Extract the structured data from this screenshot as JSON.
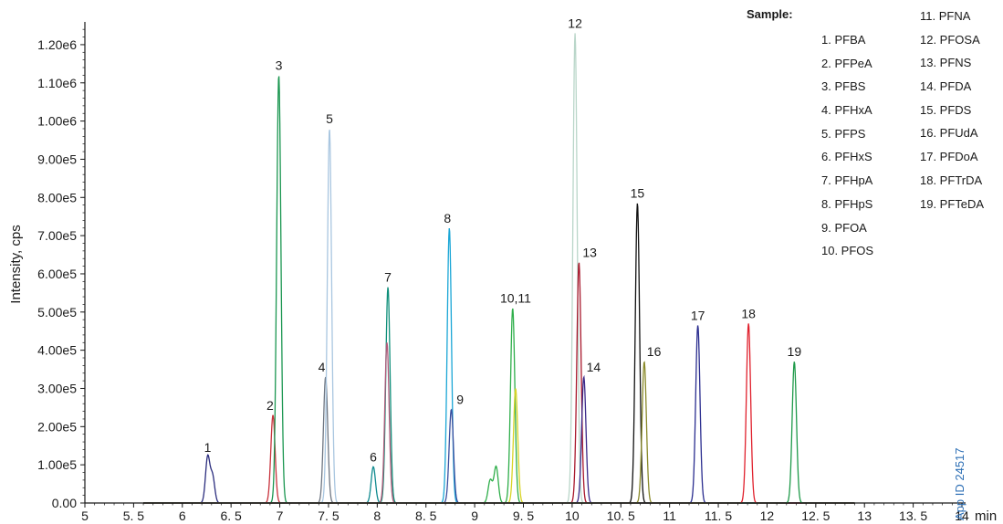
{
  "chart_data": {
    "type": "line",
    "title": "",
    "xlabel": "min",
    "ylabel": "Intensity, cps",
    "xlim": [
      5,
      14
    ],
    "ylim": [
      0,
      1250000
    ],
    "xticks": [
      5,
      5.5,
      6,
      6.5,
      7,
      7.5,
      8,
      8.5,
      9,
      9.5,
      10,
      10.5,
      11,
      11.5,
      12,
      12.5,
      13,
      13.5,
      14
    ],
    "xtick_labels": [
      "5",
      "5. 5",
      "6",
      "6. 5",
      "7",
      "7. 5",
      "8",
      "8. 5",
      "9",
      "9. 5",
      "10",
      "10. 5",
      "11",
      "11. 5",
      "12",
      "12. 5",
      "13",
      "13. 5",
      "14"
    ],
    "yticks": [
      0,
      100000,
      200000,
      300000,
      400000,
      500000,
      600000,
      700000,
      800000,
      900000,
      1000000,
      1100000,
      1200000
    ],
    "ytick_labels": [
      "0.00",
      "1.00e5",
      "2.00e5",
      "3.00e5",
      "4.00e5",
      "5.00e5",
      "6.00e5",
      "7.00e5",
      "8.00e5",
      "9.00e5",
      "1.00e6",
      "1.10e6",
      "1.20e6"
    ],
    "grid": false,
    "series": [
      {
        "color": "#2b2d7e",
        "peaks": [
          {
            "rt": 6.26,
            "height": 120000
          },
          {
            "rt": 6.31,
            "height": 70000
          }
        ]
      },
      {
        "color": "#c8323c",
        "peaks": [
          {
            "rt": 6.93,
            "height": 230000
          }
        ]
      },
      {
        "color": "#1a9650",
        "peaks": [
          {
            "rt": 6.99,
            "height": 1120000
          }
        ]
      },
      {
        "color": "#6e7682",
        "peaks": [
          {
            "rt": 7.47,
            "height": 330000
          }
        ]
      },
      {
        "color": "#a9c6e0",
        "peaks": [
          {
            "rt": 7.51,
            "height": 980000
          }
        ]
      },
      {
        "color": "#108a8f",
        "peaks": [
          {
            "rt": 7.96,
            "height": 95000
          }
        ]
      },
      {
        "color": "#0f8f7a",
        "peaks": [
          {
            "rt": 8.11,
            "height": 565000
          }
        ]
      },
      {
        "color": "#b05a7a",
        "peaks": [
          {
            "rt": 8.1,
            "height": 420000
          }
        ]
      },
      {
        "color": "#1aa6d6",
        "peaks": [
          {
            "rt": 8.74,
            "height": 720000
          }
        ]
      },
      {
        "color": "#3a4e9e",
        "peaks": [
          {
            "rt": 8.76,
            "height": 245000
          }
        ]
      },
      {
        "color": "#2eae4a",
        "peaks": [
          {
            "rt": 9.39,
            "height": 510000
          },
          {
            "rt": 9.16,
            "height": 60000
          },
          {
            "rt": 9.22,
            "height": 95000
          }
        ]
      },
      {
        "color": "#d8d426",
        "peaks": [
          {
            "rt": 9.42,
            "height": 300000
          }
        ]
      },
      {
        "color": "#b9d6c9",
        "peaks": [
          {
            "rt": 10.03,
            "height": 1230000
          }
        ]
      },
      {
        "color": "#a8182c",
        "peaks": [
          {
            "rt": 10.07,
            "height": 630000
          }
        ]
      },
      {
        "color": "#3b2a8a",
        "peaks": [
          {
            "rt": 10.12,
            "height": 330000
          }
        ]
      },
      {
        "color": "#111111",
        "peaks": [
          {
            "rt": 10.67,
            "height": 785000
          }
        ]
      },
      {
        "color": "#8a8a2a",
        "peaks": [
          {
            "rt": 10.74,
            "height": 370000
          }
        ]
      },
      {
        "color": "#2a2d8f",
        "peaks": [
          {
            "rt": 11.29,
            "height": 465000
          }
        ]
      },
      {
        "color": "#e0202c",
        "peaks": [
          {
            "rt": 11.81,
            "height": 470000
          }
        ]
      },
      {
        "color": "#1f9a4a",
        "peaks": [
          {
            "rt": 12.28,
            "height": 370000
          }
        ]
      }
    ],
    "peak_labels": [
      {
        "text": "1",
        "rt": 6.26,
        "height": 120000
      },
      {
        "text": "2",
        "rt": 6.9,
        "height": 230000
      },
      {
        "text": "3",
        "rt": 6.99,
        "height": 1120000
      },
      {
        "text": "4",
        "rt": 7.43,
        "height": 330000
      },
      {
        "text": "5",
        "rt": 7.51,
        "height": 980000
      },
      {
        "text": "6",
        "rt": 7.96,
        "height": 95000
      },
      {
        "text": "7",
        "rt": 8.11,
        "height": 565000
      },
      {
        "text": "8",
        "rt": 8.72,
        "height": 720000
      },
      {
        "text": "9",
        "rt": 8.85,
        "height": 245000
      },
      {
        "text": "10,11",
        "rt": 9.42,
        "height": 510000
      },
      {
        "text": "12",
        "rt": 10.03,
        "height": 1230000
      },
      {
        "text": "13",
        "rt": 10.18,
        "height": 630000
      },
      {
        "text": "14",
        "rt": 10.22,
        "height": 330000
      },
      {
        "text": "15",
        "rt": 10.67,
        "height": 785000
      },
      {
        "text": "16",
        "rt": 10.84,
        "height": 370000
      },
      {
        "text": "17",
        "rt": 11.29,
        "height": 465000
      },
      {
        "text": "18",
        "rt": 11.81,
        "height": 470000
      },
      {
        "text": "19",
        "rt": 12.28,
        "height": 370000
      }
    ]
  },
  "legend": {
    "title": "Sample:",
    "col1": [
      "1. PFBA",
      "2. PFPeA",
      "3. PFBS",
      "4. PFHxA",
      "5. PFPS",
      "6. PFHxS",
      "7. PFHpA",
      "8. PFHpS",
      "9. PFOA",
      "10. PFOS"
    ],
    "col2": [
      "11. PFNA",
      "12. PFOSA",
      "13. PFNS",
      "14. PFDA",
      "15. PFDS",
      "16. PFUdA",
      "17. PFDoA",
      "18. PFTrDA",
      "19. PFTeDA"
    ]
  },
  "app_id": "App ID 24517"
}
